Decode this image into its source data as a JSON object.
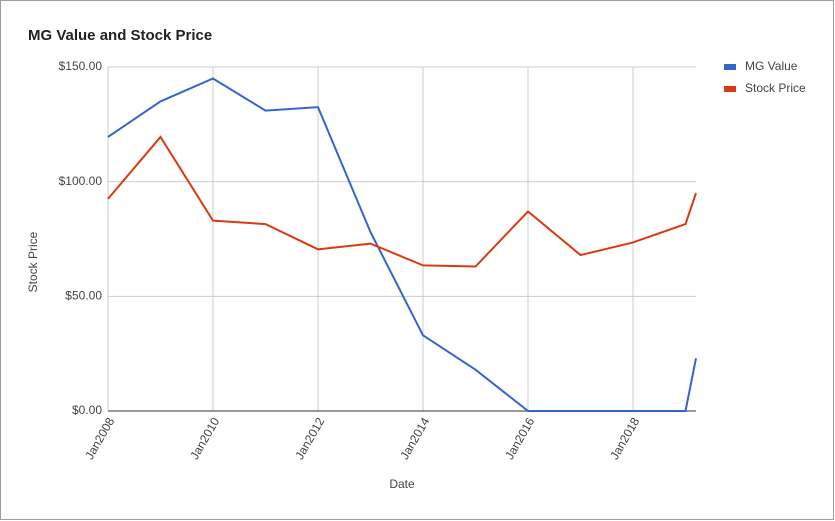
{
  "chart_data": {
    "type": "line",
    "title": "MG Value and Stock Price",
    "x_label": "Date",
    "y_label": "Stock Price",
    "x": [
      2008,
      2009,
      2010,
      2011,
      2012,
      2013,
      2014,
      2015,
      2016,
      2017,
      2018,
      2019,
      2019.2
    ],
    "series": [
      {
        "name": "MG Value",
        "color": "#3366cc",
        "values": [
          119.5,
          135,
          145,
          131,
          132.5,
          78,
          33,
          18,
          0,
          0,
          0,
          0,
          23
        ]
      },
      {
        "name": "Stock Price",
        "color": "#dc3912",
        "values": [
          92.5,
          119.5,
          83,
          81.5,
          70.5,
          73,
          63.5,
          63,
          87,
          68,
          73.5,
          81.5,
          95
        ]
      }
    ],
    "xlim": [
      2008,
      2019.2
    ],
    "xticks": [
      {
        "value": 2008,
        "label": "Jan2008"
      },
      {
        "value": 2010,
        "label": "Jan2010"
      },
      {
        "value": 2012,
        "label": "Jan2012"
      },
      {
        "value": 2014,
        "label": "Jan2014"
      },
      {
        "value": 2016,
        "label": "Jan2016"
      },
      {
        "value": 2018,
        "label": "Jan2018"
      }
    ],
    "ylim": [
      0,
      150
    ],
    "yticks": [
      {
        "value": 0,
        "label": "$0.00"
      },
      {
        "value": 50,
        "label": "$50.00"
      },
      {
        "value": 100,
        "label": "$100.00"
      },
      {
        "value": 150,
        "label": "$150.00"
      }
    ],
    "grid": true,
    "legend": "right"
  }
}
